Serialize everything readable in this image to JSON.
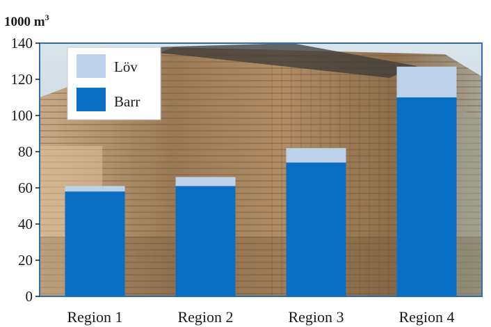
{
  "chart_data": {
    "type": "bar",
    "stacked": true,
    "unit_label": "1000 m",
    "unit_superscript": "3",
    "categories": [
      "Region 1",
      "Region 2",
      "Region 3",
      "Region 4"
    ],
    "series": [
      {
        "name": "Barr",
        "values": [
          58,
          61,
          74,
          110
        ],
        "color": "#0a6fc2"
      },
      {
        "name": "Löv",
        "values": [
          3,
          5,
          8,
          17
        ],
        "color": "#bcd2ea"
      }
    ],
    "yticks": [
      0,
      20,
      40,
      60,
      80,
      100,
      120,
      140
    ],
    "ylim": [
      0,
      140
    ],
    "legend_position": "top-left",
    "legend_order": [
      "Löv",
      "Barr"
    ],
    "background": "photo of stacked lumber"
  }
}
